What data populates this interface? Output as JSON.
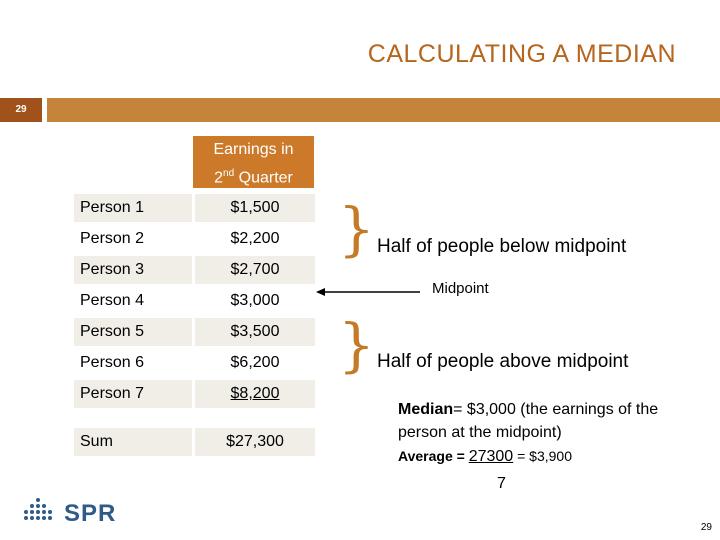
{
  "title": "CALCULATING A MEDIAN",
  "slide_number": "29",
  "table": {
    "header_line1": "Earnings in",
    "header_line2_pre": "2",
    "header_line2_sup": "nd",
    "header_line2_post": " Quarter",
    "rows": [
      {
        "label": "Person 1",
        "value": "$1,500"
      },
      {
        "label": "Person 2",
        "value": "$2,200"
      },
      {
        "label": "Person 3",
        "value": "$2,700"
      },
      {
        "label": "Person 4",
        "value": "$3,000"
      },
      {
        "label": "Person 5",
        "value": "$3,500"
      },
      {
        "label": "Person 6",
        "value": "$6,200"
      },
      {
        "label": "Person 7",
        "value": "$8,200"
      }
    ],
    "sum_label": "Sum",
    "sum_value": "$27,300"
  },
  "annotations": {
    "below": "Half of people below midpoint",
    "midpoint": "Midpoint",
    "above": "Half of people above midpoint"
  },
  "median": {
    "label": "Median",
    "text": "= $3,000 (the earnings of the person at the midpoint)"
  },
  "average": {
    "label": "Average = ",
    "numerator": "27300",
    "result": " = $3,900",
    "denominator": "7"
  },
  "logo": {
    "text": "SPR"
  },
  "page_number": "29",
  "colors": {
    "accent": "#c4843a",
    "header": "#cc7a2a",
    "title": "#b5651d",
    "logo": "#2e5b88"
  }
}
